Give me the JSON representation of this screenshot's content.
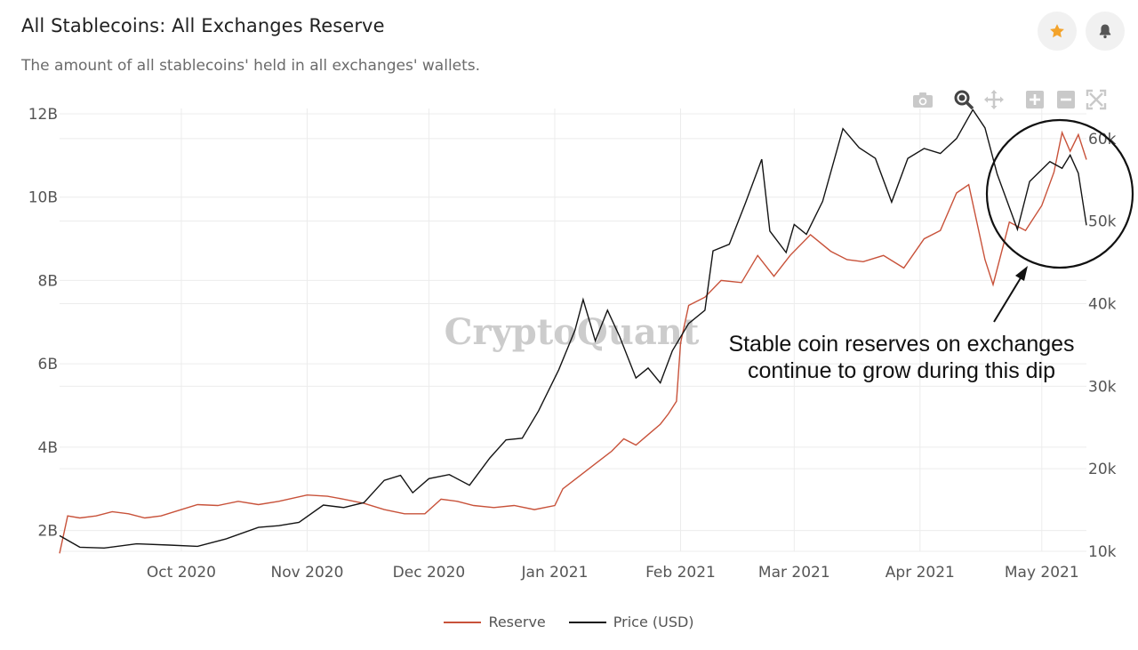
{
  "header": {
    "title": "All Stablecoins: All Exchanges Reserve",
    "subtitle": "The amount of all stablecoins' held in all exchanges' wallets."
  },
  "colors": {
    "reserve": "#c8523a",
    "price": "#141414",
    "star": "#f3a32b",
    "bell": "#555555",
    "grid": "#ececec"
  },
  "toolbar": {
    "icons": [
      "camera-icon",
      "zoom-icon",
      "pan-icon",
      "zoom-in-icon",
      "zoom-out-icon",
      "autoscale-icon"
    ]
  },
  "watermark": "CryptoQuant",
  "annotation": {
    "lines": [
      "Stable coin reserves on exchanges",
      "continue to grow during this dip"
    ]
  },
  "chart_data": {
    "type": "line",
    "x_ticks": [
      "Oct 2020",
      "Nov 2020",
      "Dec 2020",
      "Jan 2021",
      "Feb 2021",
      "Mar 2021",
      "Apr 2021",
      "May 2021"
    ],
    "y_left_ticks": [
      "2B",
      "4B",
      "6B",
      "8B",
      "10B",
      "12B"
    ],
    "y_right_ticks": [
      "10k",
      "20k",
      "30k",
      "40k",
      "50k",
      "60k"
    ],
    "y_left_range": [
      1.5,
      12
    ],
    "y_right_range": [
      10000,
      63000
    ],
    "x_range": [
      "2020-09-01",
      "2021-05-12"
    ],
    "grid": true,
    "legend_position": "bottom",
    "series": [
      {
        "name": "Reserve",
        "axis": "left",
        "points": [
          [
            "2020-09-01",
            1.45
          ],
          [
            "2020-09-03",
            2.35
          ],
          [
            "2020-09-06",
            2.3
          ],
          [
            "2020-09-10",
            2.35
          ],
          [
            "2020-09-14",
            2.45
          ],
          [
            "2020-09-18",
            2.4
          ],
          [
            "2020-09-22",
            2.3
          ],
          [
            "2020-09-26",
            2.35
          ],
          [
            "2020-10-01",
            2.5
          ],
          [
            "2020-10-05",
            2.62
          ],
          [
            "2020-10-10",
            2.6
          ],
          [
            "2020-10-15",
            2.7
          ],
          [
            "2020-10-20",
            2.62
          ],
          [
            "2020-10-25",
            2.7
          ],
          [
            "2020-11-01",
            2.85
          ],
          [
            "2020-11-06",
            2.82
          ],
          [
            "2020-11-10",
            2.75
          ],
          [
            "2020-11-15",
            2.65
          ],
          [
            "2020-11-20",
            2.5
          ],
          [
            "2020-11-25",
            2.4
          ],
          [
            "2020-11-30",
            2.4
          ],
          [
            "2020-12-04",
            2.75
          ],
          [
            "2020-12-08",
            2.7
          ],
          [
            "2020-12-12",
            2.6
          ],
          [
            "2020-12-17",
            2.55
          ],
          [
            "2020-12-22",
            2.6
          ],
          [
            "2020-12-27",
            2.5
          ],
          [
            "2021-01-01",
            2.6
          ],
          [
            "2021-01-03",
            3.0
          ],
          [
            "2021-01-07",
            3.3
          ],
          [
            "2021-01-11",
            3.6
          ],
          [
            "2021-01-15",
            3.9
          ],
          [
            "2021-01-18",
            4.2
          ],
          [
            "2021-01-21",
            4.05
          ],
          [
            "2021-01-24",
            4.3
          ],
          [
            "2021-01-27",
            4.55
          ],
          [
            "2021-01-29",
            4.8
          ],
          [
            "2021-01-31",
            5.1
          ],
          [
            "2021-02-01",
            6.5
          ],
          [
            "2021-02-03",
            7.4
          ],
          [
            "2021-02-07",
            7.6
          ],
          [
            "2021-02-11",
            8.0
          ],
          [
            "2021-02-16",
            7.95
          ],
          [
            "2021-02-20",
            8.6
          ],
          [
            "2021-02-24",
            8.1
          ],
          [
            "2021-02-28",
            8.6
          ],
          [
            "2021-03-05",
            9.1
          ],
          [
            "2021-03-10",
            8.7
          ],
          [
            "2021-03-14",
            8.5
          ],
          [
            "2021-03-18",
            8.45
          ],
          [
            "2021-03-23",
            8.6
          ],
          [
            "2021-03-28",
            8.3
          ],
          [
            "2021-04-02",
            9.0
          ],
          [
            "2021-04-06",
            9.2
          ],
          [
            "2021-04-10",
            10.1
          ],
          [
            "2021-04-13",
            10.3
          ],
          [
            "2021-04-17",
            8.5
          ],
          [
            "2021-04-19",
            7.9
          ],
          [
            "2021-04-23",
            9.4
          ],
          [
            "2021-04-27",
            9.2
          ],
          [
            "2021-05-01",
            9.8
          ],
          [
            "2021-05-04",
            10.6
          ],
          [
            "2021-05-06",
            11.55
          ],
          [
            "2021-05-08",
            11.1
          ],
          [
            "2021-05-10",
            11.5
          ],
          [
            "2021-05-12",
            10.9
          ]
        ]
      },
      {
        "name": "Price (USD)",
        "axis": "right",
        "points": [
          [
            "2020-09-01",
            11900
          ],
          [
            "2020-09-06",
            10500
          ],
          [
            "2020-09-12",
            10400
          ],
          [
            "2020-09-20",
            10900
          ],
          [
            "2020-09-28",
            10750
          ],
          [
            "2020-10-05",
            10600
          ],
          [
            "2020-10-12",
            11500
          ],
          [
            "2020-10-20",
            12900
          ],
          [
            "2020-10-25",
            13100
          ],
          [
            "2020-10-30",
            13500
          ],
          [
            "2020-11-05",
            15600
          ],
          [
            "2020-11-10",
            15300
          ],
          [
            "2020-11-15",
            15900
          ],
          [
            "2020-11-20",
            18600
          ],
          [
            "2020-11-24",
            19200
          ],
          [
            "2020-11-27",
            17100
          ],
          [
            "2020-12-01",
            18800
          ],
          [
            "2020-12-06",
            19300
          ],
          [
            "2020-12-11",
            18000
          ],
          [
            "2020-12-16",
            21300
          ],
          [
            "2020-12-20",
            23500
          ],
          [
            "2020-12-24",
            23700
          ],
          [
            "2020-12-28",
            27000
          ],
          [
            "2021-01-02",
            32000
          ],
          [
            "2021-01-06",
            36800
          ],
          [
            "2021-01-08",
            40500
          ],
          [
            "2021-01-11",
            35500
          ],
          [
            "2021-01-14",
            39200
          ],
          [
            "2021-01-17",
            36000
          ],
          [
            "2021-01-21",
            31000
          ],
          [
            "2021-01-24",
            32200
          ],
          [
            "2021-01-27",
            30400
          ],
          [
            "2021-01-30",
            34300
          ],
          [
            "2021-02-03",
            37600
          ],
          [
            "2021-02-07",
            39200
          ],
          [
            "2021-02-09",
            46400
          ],
          [
            "2021-02-13",
            47200
          ],
          [
            "2021-02-17",
            52200
          ],
          [
            "2021-02-21",
            57500
          ],
          [
            "2021-02-23",
            48800
          ],
          [
            "2021-02-27",
            46200
          ],
          [
            "2021-03-01",
            49600
          ],
          [
            "2021-03-04",
            48400
          ],
          [
            "2021-03-08",
            52400
          ],
          [
            "2021-03-13",
            61200
          ],
          [
            "2021-03-17",
            58900
          ],
          [
            "2021-03-21",
            57600
          ],
          [
            "2021-03-25",
            52300
          ],
          [
            "2021-03-29",
            57600
          ],
          [
            "2021-04-02",
            58800
          ],
          [
            "2021-04-06",
            58200
          ],
          [
            "2021-04-10",
            60000
          ],
          [
            "2021-04-14",
            63500
          ],
          [
            "2021-04-17",
            61300
          ],
          [
            "2021-04-20",
            55700
          ],
          [
            "2021-04-25",
            49000
          ],
          [
            "2021-04-28",
            54800
          ],
          [
            "2021-05-03",
            57200
          ],
          [
            "2021-05-06",
            56400
          ],
          [
            "2021-05-08",
            58000
          ],
          [
            "2021-05-10",
            55800
          ],
          [
            "2021-05-12",
            49500
          ]
        ]
      }
    ]
  }
}
